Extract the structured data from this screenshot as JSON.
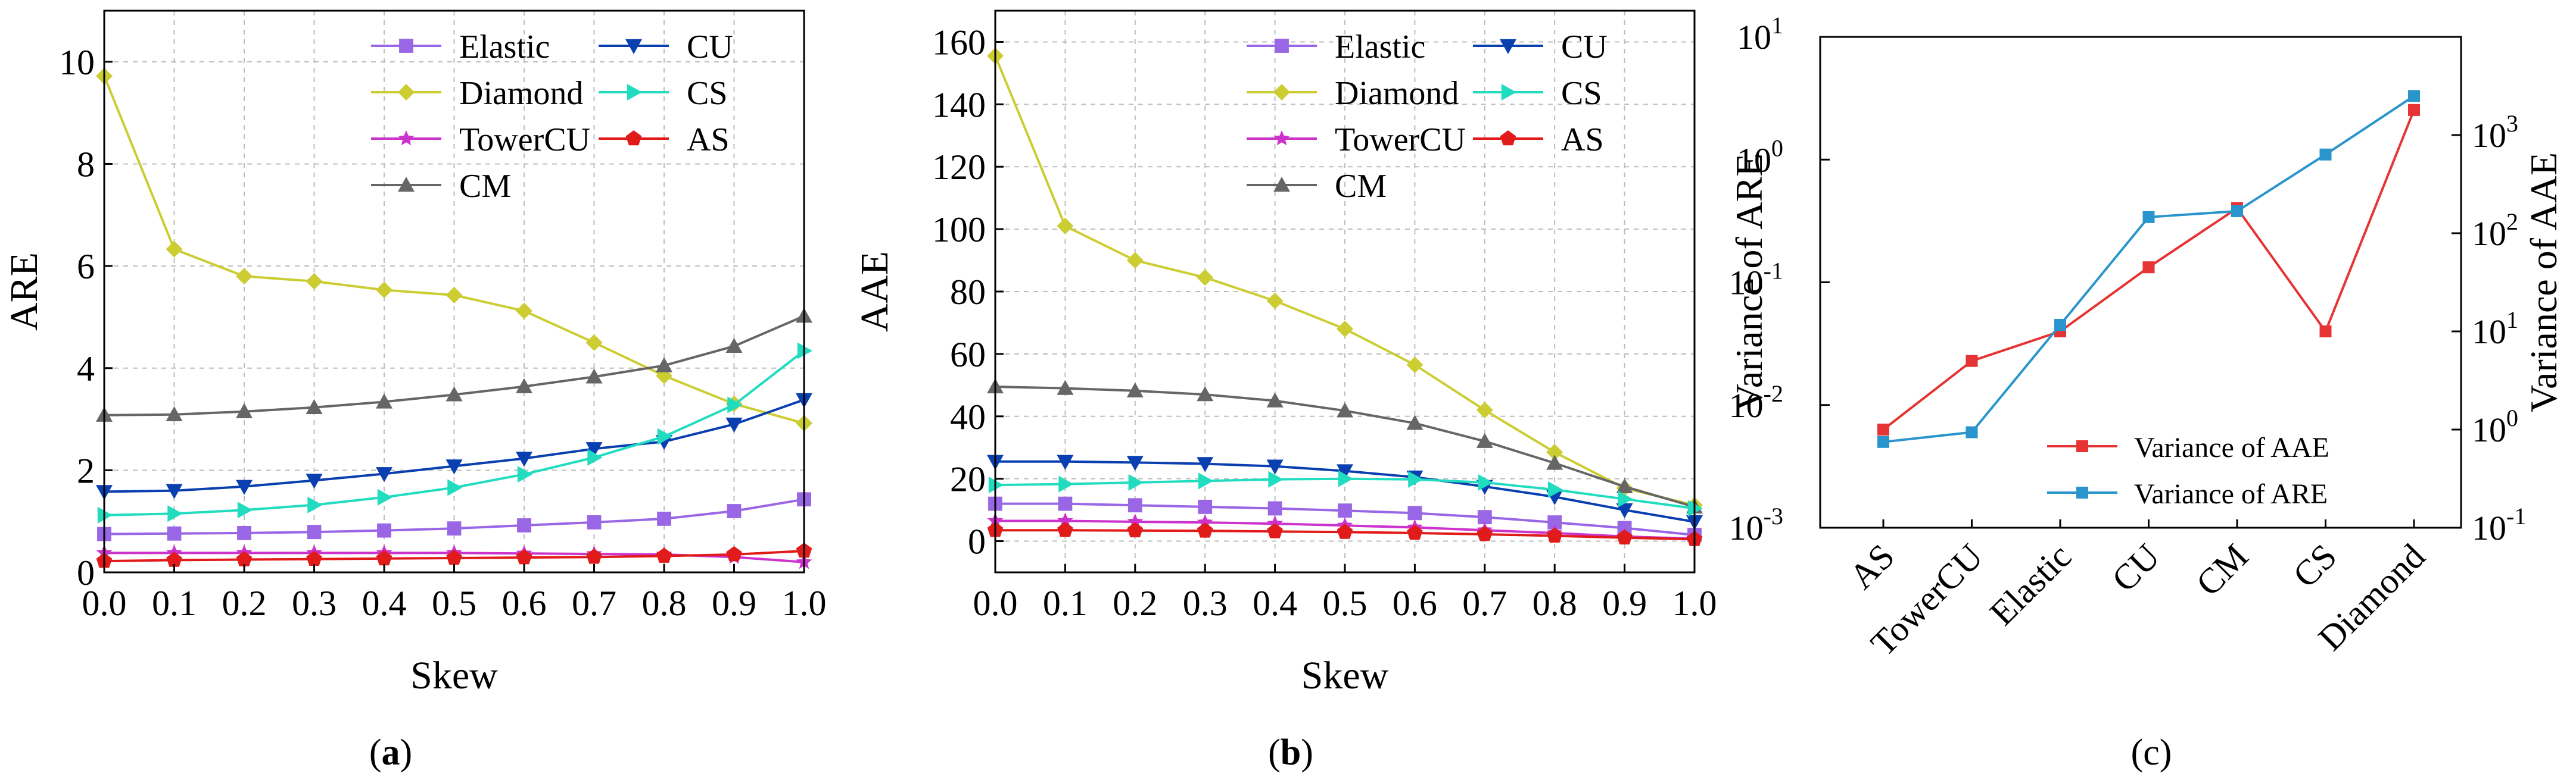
{
  "colors": {
    "Elastic": "#9966e6",
    "Diamond": "#cccc33",
    "TowerCU": "#cc33cc",
    "CM": "#666666",
    "CU": "#0a3fb0",
    "CS": "#22dcc0",
    "AS": "#e11a1a",
    "VarAAE": "#e63333",
    "VarARE": "#2a95cc",
    "grid": "#bdbdbd"
  },
  "chart_data": [
    {
      "type": "line",
      "panel_label": "a",
      "xlabel": "Skew",
      "ylabel": "ARE",
      "xlim": [
        0.0,
        1.0
      ],
      "ylim": [
        0,
        11
      ],
      "x": [
        0.0,
        0.1,
        0.2,
        0.3,
        0.4,
        0.5,
        0.6,
        0.7,
        0.8,
        0.9,
        1.0
      ],
      "x_ticks": [
        "0.0",
        "0.1",
        "0.2",
        "0.3",
        "0.4",
        "0.5",
        "0.6",
        "0.7",
        "0.8",
        "0.9",
        "1.0"
      ],
      "y_ticks": [
        0,
        2,
        4,
        6,
        8,
        10
      ],
      "grid": true,
      "legend_placement": "top-right",
      "series": [
        {
          "name": "Elastic",
          "marker": "square",
          "values": [
            0.75,
            0.76,
            0.77,
            0.79,
            0.82,
            0.86,
            0.92,
            0.98,
            1.05,
            1.2,
            1.43
          ]
        },
        {
          "name": "Diamond",
          "marker": "diamond",
          "values": [
            9.72,
            6.33,
            5.8,
            5.7,
            5.53,
            5.43,
            5.12,
            4.5,
            3.85,
            3.3,
            2.92
          ]
        },
        {
          "name": "TowerCU",
          "marker": "star",
          "values": [
            0.38,
            0.38,
            0.38,
            0.38,
            0.38,
            0.38,
            0.37,
            0.36,
            0.35,
            0.3,
            0.2
          ]
        },
        {
          "name": "CM",
          "marker": "triangle-up",
          "values": [
            3.08,
            3.09,
            3.15,
            3.23,
            3.34,
            3.48,
            3.64,
            3.83,
            4.05,
            4.43,
            5.02
          ]
        },
        {
          "name": "CU",
          "marker": "triangle-down",
          "values": [
            1.58,
            1.6,
            1.68,
            1.8,
            1.93,
            2.08,
            2.23,
            2.42,
            2.56,
            2.9,
            3.38
          ]
        },
        {
          "name": "CS",
          "marker": "triangle-right",
          "values": [
            1.12,
            1.15,
            1.22,
            1.32,
            1.47,
            1.66,
            1.92,
            2.25,
            2.66,
            3.28,
            4.34
          ]
        },
        {
          "name": "AS",
          "marker": "pentagon",
          "values": [
            0.22,
            0.24,
            0.25,
            0.26,
            0.27,
            0.28,
            0.29,
            0.3,
            0.32,
            0.35,
            0.42
          ]
        }
      ],
      "legend_columns": [
        [
          "Elastic",
          "Diamond",
          "TowerCU",
          "CM"
        ],
        [
          "CU",
          "CS",
          "AS"
        ]
      ]
    },
    {
      "type": "line",
      "panel_label": "b",
      "xlabel": "Skew",
      "ylabel": "AAE",
      "xlim": [
        0.0,
        1.0
      ],
      "ylim": [
        -10,
        170
      ],
      "x": [
        0.0,
        0.1,
        0.2,
        0.3,
        0.4,
        0.5,
        0.6,
        0.7,
        0.8,
        0.9,
        1.0
      ],
      "x_ticks": [
        "0.0",
        "0.1",
        "0.2",
        "0.3",
        "0.4",
        "0.5",
        "0.6",
        "0.7",
        "0.8",
        "0.9",
        "1.0"
      ],
      "y_ticks": [
        0,
        20,
        40,
        60,
        80,
        100,
        120,
        140,
        160
      ],
      "grid": true,
      "legend_placement": "top-right",
      "series": [
        {
          "name": "Elastic",
          "marker": "square",
          "values": [
            12,
            12,
            11.5,
            11,
            10.5,
            9.8,
            9,
            7.7,
            6,
            4.2,
            2
          ]
        },
        {
          "name": "Diamond",
          "marker": "diamond",
          "values": [
            155.5,
            101,
            90,
            84.5,
            77,
            68,
            56.5,
            42,
            28.5,
            17,
            11.5
          ]
        },
        {
          "name": "TowerCU",
          "marker": "star",
          "values": [
            6.5,
            6.5,
            6.2,
            6,
            5.6,
            5,
            4.4,
            3.5,
            2.6,
            1.5,
            0.8
          ]
        },
        {
          "name": "CM",
          "marker": "triangle-up",
          "values": [
            49.5,
            49,
            48.2,
            47,
            45,
            41.8,
            37.8,
            32,
            25,
            17.5,
            11
          ]
        },
        {
          "name": "CU",
          "marker": "triangle-down",
          "values": [
            25.5,
            25.5,
            25.2,
            24.8,
            24,
            22.5,
            20.5,
            17.5,
            14.2,
            10,
            6.2
          ]
        },
        {
          "name": "CS",
          "marker": "triangle-right",
          "values": [
            18,
            18.3,
            18.8,
            19.3,
            19.8,
            20,
            19.8,
            18.8,
            16.5,
            13.5,
            10.5
          ]
        },
        {
          "name": "AS",
          "marker": "pentagon",
          "values": [
            3.5,
            3.5,
            3.4,
            3.3,
            3.1,
            2.9,
            2.6,
            2.2,
            1.7,
            1.1,
            0.6
          ]
        }
      ],
      "legend_columns": [
        [
          "Elastic",
          "Diamond",
          "TowerCU",
          "CM"
        ],
        [
          "CU",
          "CS",
          "AS"
        ]
      ]
    },
    {
      "type": "line",
      "panel_label": "c",
      "ylabel_left": "Variance of ARE",
      "ylabel_right": "Variance of AAE",
      "categories": [
        "AS",
        "TowerCU",
        "Elastic",
        "CU",
        "CM",
        "CS",
        "Diamond"
      ],
      "yscale": "log",
      "ylim_left": [
        0.001,
        10
      ],
      "ylim_right": [
        0.1,
        10000
      ],
      "y_ticks_left": [
        {
          "base": "10",
          "exp": "1",
          "value": 10
        },
        {
          "base": "10",
          "exp": "0",
          "value": 1
        },
        {
          "base": "10",
          "exp": "-1",
          "value": 0.1
        },
        {
          "base": "10",
          "exp": "-2",
          "value": 0.01
        },
        {
          "base": "10",
          "exp": "-3",
          "value": 0.001
        }
      ],
      "y_ticks_right": [
        {
          "base": "10",
          "exp": "3",
          "value": 1000
        },
        {
          "base": "10",
          "exp": "2",
          "value": 100
        },
        {
          "base": "10",
          "exp": "1",
          "value": 10
        },
        {
          "base": "10",
          "exp": "0",
          "value": 1
        },
        {
          "base": "10",
          "exp": "-1",
          "value": 0.1
        }
      ],
      "grid": false,
      "legend_placement": "bottom-right",
      "series": [
        {
          "name": "Variance of AAE",
          "axis": "right",
          "marker": "square",
          "values": [
            1.0,
            5.0,
            10.0,
            45.0,
            180.0,
            10.0,
            1800.0
          ]
        },
        {
          "name": "Variance of ARE",
          "axis": "left",
          "marker": "square",
          "values": [
            0.005,
            0.006,
            0.045,
            0.34,
            0.38,
            1.1,
            3.3
          ]
        }
      ]
    }
  ]
}
